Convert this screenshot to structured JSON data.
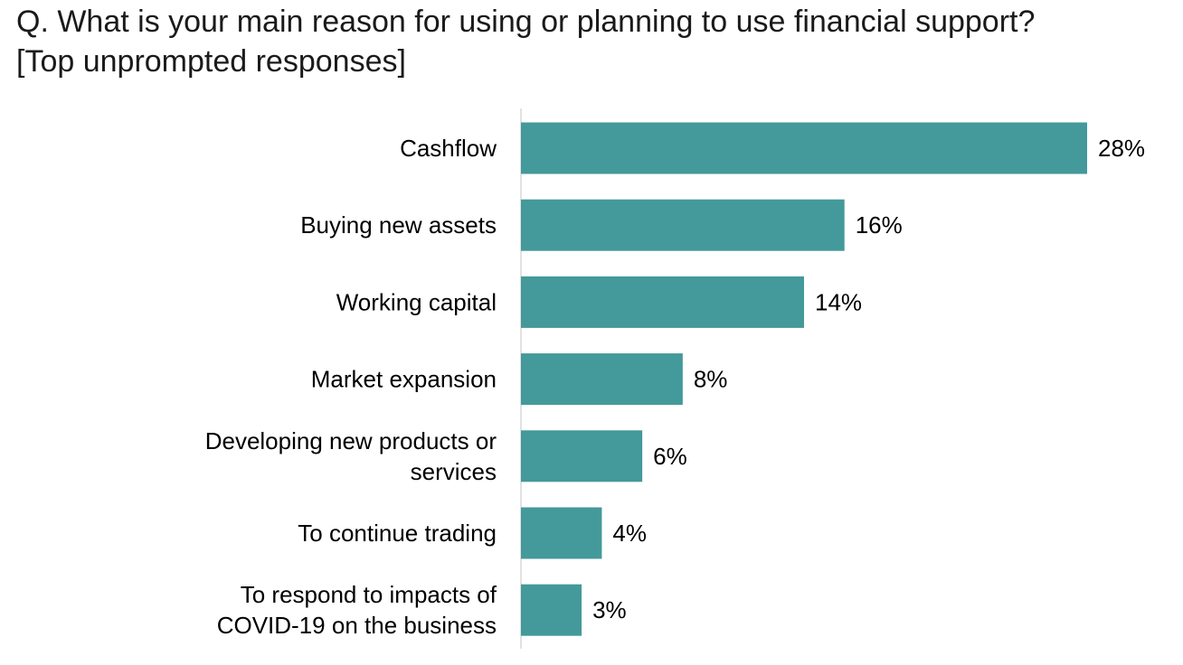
{
  "title": {
    "line1": "Q. What is your main reason for using or planning to use financial support?",
    "line2": "[Top unprompted responses]"
  },
  "colors": {
    "bar": "#44999a",
    "axis": "#d9d9d9",
    "text": "#000000"
  },
  "chart_data": {
    "type": "bar",
    "orientation": "horizontal",
    "categories": [
      [
        "Cashflow"
      ],
      [
        "Buying new assets"
      ],
      [
        "Working capital"
      ],
      [
        "Market expansion"
      ],
      [
        "Developing new products or",
        "services"
      ],
      [
        "To continue trading"
      ],
      [
        "To respond to impacts of",
        "COVID-19 on the business"
      ]
    ],
    "values": [
      28,
      16,
      14,
      8,
      6,
      4,
      3
    ],
    "data_labels": [
      "28%",
      "16%",
      "14%",
      "8%",
      "6%",
      "4%",
      "3%"
    ],
    "unit": "%",
    "xlim": [
      0,
      28
    ],
    "grid": false,
    "legend": "none"
  }
}
